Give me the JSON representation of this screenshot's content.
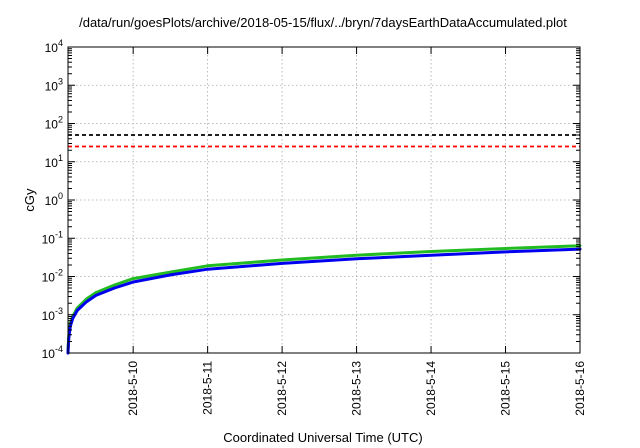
{
  "chart_data": {
    "type": "line",
    "title": "/data/run/goesPlots/archive/2018-05-15/flux/../bryn/7daysEarthDataAccumulated.plot",
    "xlabel": "Coordinated Universal Time (UTC)",
    "ylabel": "cGy",
    "x_scale": "date",
    "xlim": [
      "2018-05-09 03:00",
      "2018-05-16 00:00"
    ],
    "x_ticks": [
      "2018-5-10",
      "2018-5-11",
      "2018-5-12",
      "2018-5-13",
      "2018-5-14",
      "2018-5-15",
      "2018-5-16"
    ],
    "y_scale": "log",
    "ylim": [
      0.0001,
      10000
    ],
    "y_tick_exponents": [
      "-4",
      "-3",
      "-2",
      "-1",
      "0",
      "1",
      "2",
      "3",
      "4"
    ],
    "grid": true,
    "legend": "none",
    "reference_lines": [
      {
        "y": 50,
        "color": "#000000",
        "style": "dashed"
      },
      {
        "y": 25,
        "color": "#ff0000",
        "style": "dashed"
      }
    ],
    "series": [
      {
        "color": "#22bb22",
        "x": [
          "2018-05-09 03:00",
          "2018-05-09 03:15",
          "2018-05-09 03:45",
          "2018-05-09 04:30",
          "2018-05-09 06:00",
          "2018-05-09 09:00",
          "2018-05-09 12:00",
          "2018-05-09 18:00",
          "2018-05-10 00:00",
          "2018-05-10 12:00",
          "2018-05-11 00:00",
          "2018-05-12 00:00",
          "2018-05-13 00:00",
          "2018-05-14 00:00",
          "2018-05-15 00:00",
          "2018-05-16 00:00"
        ],
        "y": [
          0.00012,
          0.0003,
          0.0006,
          0.0009,
          0.0015,
          0.0026,
          0.0038,
          0.006,
          0.0088,
          0.013,
          0.019,
          0.027,
          0.036,
          0.045,
          0.054,
          0.064
        ]
      },
      {
        "color": "#0000ee",
        "x": [
          "2018-05-09 03:00",
          "2018-05-09 03:15",
          "2018-05-09 03:45",
          "2018-05-09 04:30",
          "2018-05-09 06:00",
          "2018-05-09 09:00",
          "2018-05-09 12:00",
          "2018-05-09 18:00",
          "2018-05-10 00:00",
          "2018-05-10 12:00",
          "2018-05-11 00:00",
          "2018-05-12 00:00",
          "2018-05-13 00:00",
          "2018-05-14 00:00",
          "2018-05-15 00:00",
          "2018-05-16 00:00"
        ],
        "y": [
          0.0001,
          0.00025,
          0.0005,
          0.0008,
          0.0013,
          0.0022,
          0.0032,
          0.005,
          0.0072,
          0.011,
          0.0155,
          0.022,
          0.029,
          0.036,
          0.044,
          0.052
        ]
      }
    ]
  }
}
